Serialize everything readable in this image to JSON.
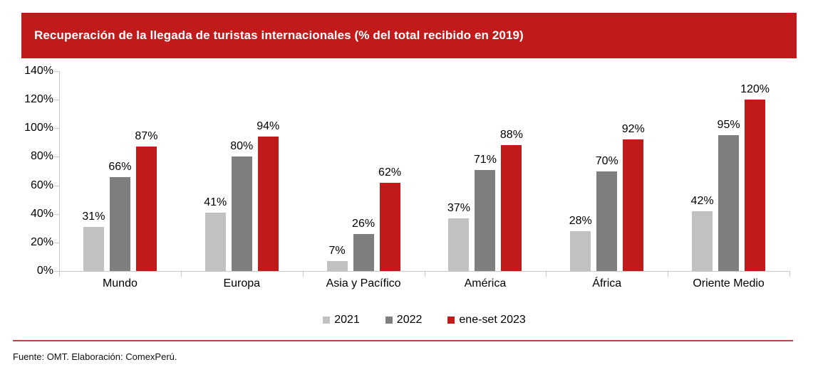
{
  "title": "Recuperación de la llegada de turistas internacionales (% del total recibido en 2019)",
  "footnote": "Fuente: OMT. Elaboración: ComexPerú.",
  "colors": {
    "banner_red": "#c01a1a",
    "series_2021_gray": "#c1c1c1",
    "series_2022_gray": "#7f7f7f",
    "series_2023_red": "#c01a1a",
    "axis_gray": "#c6c6c6",
    "footer_line_red": "#c5404a",
    "title_text": "#ffffff",
    "label_text": "#000000"
  },
  "chart_data": {
    "type": "bar",
    "title": "Recuperación de la llegada de turistas internacionales (% del total recibido en 2019)",
    "categories": [
      "Mundo",
      "Europa",
      "Asia y Pacífico",
      "América",
      "África",
      "Oriente Medio"
    ],
    "series": [
      {
        "name": "2021",
        "color_key": "series_2021_gray",
        "values": [
          31,
          41,
          7,
          37,
          28,
          42
        ]
      },
      {
        "name": "2022",
        "color_key": "series_2022_gray",
        "values": [
          66,
          80,
          26,
          71,
          70,
          95
        ]
      },
      {
        "name": "ene-set 2023",
        "color_key": "series_2023_red",
        "values": [
          87,
          94,
          62,
          88,
          92,
          120
        ]
      }
    ],
    "data_labels": [
      [
        "31%",
        "41%",
        "7%",
        "37%",
        "28%",
        "42%"
      ],
      [
        "66%",
        "80%",
        "26%",
        "71%",
        "70%",
        "95%"
      ],
      [
        "87%",
        "94%",
        "62%",
        "88%",
        "92%",
        "120%"
      ]
    ],
    "value_suffix": "%",
    "xlabel": "",
    "ylabel": "",
    "ylim": [
      0,
      140
    ],
    "ytick_step": 20,
    "ytick_labels": [
      "0%",
      "20%",
      "40%",
      "60%",
      "80%",
      "100%",
      "120%",
      "140%"
    ],
    "grid": false,
    "legend_position": "bottom",
    "legend_entries": [
      "2021",
      "2022",
      "ene-set 2023"
    ]
  }
}
